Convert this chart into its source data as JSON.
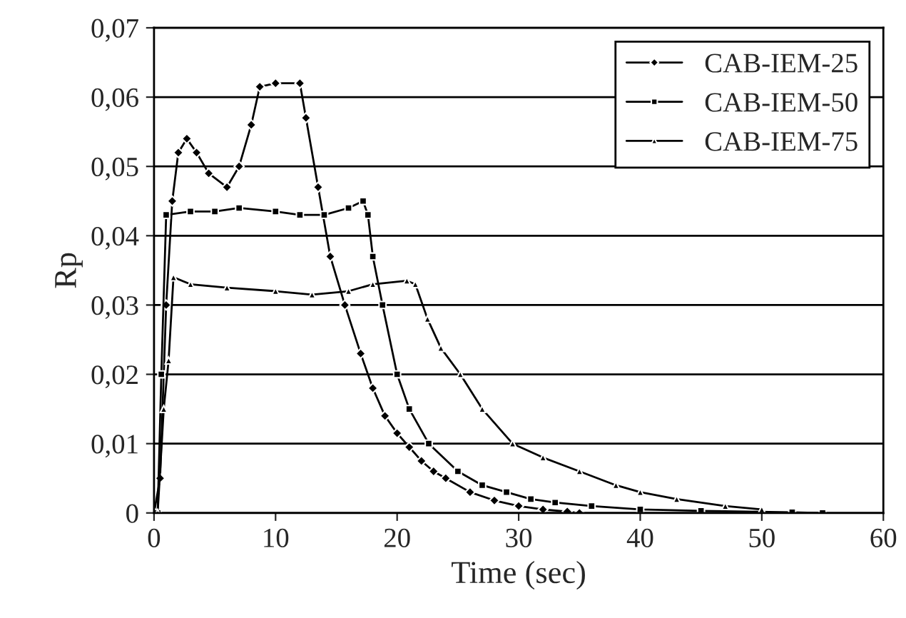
{
  "chart_data": {
    "type": "line",
    "xlabel": "Time (sec)",
    "ylabel": "Rp",
    "xlim": [
      0,
      60
    ],
    "xticks": [
      0,
      10,
      20,
      30,
      40,
      50,
      60
    ],
    "ylim": [
      0,
      0.07
    ],
    "yticks": [
      {
        "value": 0,
        "label": "0"
      },
      {
        "value": 0.01,
        "label": "0,01"
      },
      {
        "value": 0.02,
        "label": "0,02"
      },
      {
        "value": 0.03,
        "label": "0,03"
      },
      {
        "value": 0.04,
        "label": "0,04"
      },
      {
        "value": 0.05,
        "label": "0,05"
      },
      {
        "value": 0.06,
        "label": "0,06"
      },
      {
        "value": 0.07,
        "label": "0,07"
      }
    ],
    "grid": "y",
    "legend": "top right",
    "line_style": "solid",
    "series": [
      {
        "name": "CAB-IEM-25",
        "color": "#000000",
        "marker": "diamond",
        "x": [
          0,
          0.5,
          1,
          1.5,
          2,
          2.7,
          3.5,
          4.5,
          6,
          7,
          8,
          8.7,
          10,
          12,
          12.5,
          13.5,
          14.5,
          15.7,
          17,
          18,
          19,
          20,
          21,
          22,
          23,
          24,
          26,
          28,
          30,
          32,
          34,
          35
        ],
        "values": [
          0,
          0.005,
          0.03,
          0.045,
          0.052,
          0.054,
          0.052,
          0.049,
          0.047,
          0.05,
          0.056,
          0.0615,
          0.062,
          0.062,
          0.057,
          0.047,
          0.037,
          0.03,
          0.023,
          0.018,
          0.014,
          0.0115,
          0.0095,
          0.0075,
          0.006,
          0.005,
          0.003,
          0.0018,
          0.001,
          0.0005,
          0.0002,
          0
        ]
      },
      {
        "name": "CAB-IEM-50",
        "color": "#000000",
        "marker": "square",
        "x": [
          0.3,
          0.6,
          1,
          3,
          5,
          7,
          10,
          12,
          14,
          16,
          17.2,
          17.6,
          18,
          18.8,
          20,
          21,
          22.6,
          25,
          27,
          29,
          31,
          33,
          36,
          40,
          45,
          52.5,
          55
        ],
        "values": [
          0,
          0.02,
          0.043,
          0.0435,
          0.0435,
          0.044,
          0.0435,
          0.043,
          0.043,
          0.044,
          0.045,
          0.043,
          0.037,
          0.03,
          0.02,
          0.015,
          0.01,
          0.006,
          0.004,
          0.003,
          0.002,
          0.0015,
          0.001,
          0.0005,
          0.0003,
          0.0001,
          0
        ]
      },
      {
        "name": "CAB-IEM-75",
        "color": "#000000",
        "marker": "triangle",
        "x": [
          0.3,
          0.8,
          1.2,
          1.6,
          3,
          6,
          10,
          13,
          16,
          18,
          20.8,
          21.5,
          22.5,
          23.6,
          25.2,
          27,
          29.5,
          32,
          35,
          38,
          40,
          43,
          47,
          50
        ],
        "values": [
          0,
          0.015,
          0.022,
          0.034,
          0.033,
          0.0325,
          0.032,
          0.0315,
          0.032,
          0.033,
          0.0335,
          0.033,
          0.028,
          0.0238,
          0.02,
          0.015,
          0.01,
          0.008,
          0.006,
          0.004,
          0.003,
          0.002,
          0.001,
          0.0005
        ]
      }
    ]
  }
}
